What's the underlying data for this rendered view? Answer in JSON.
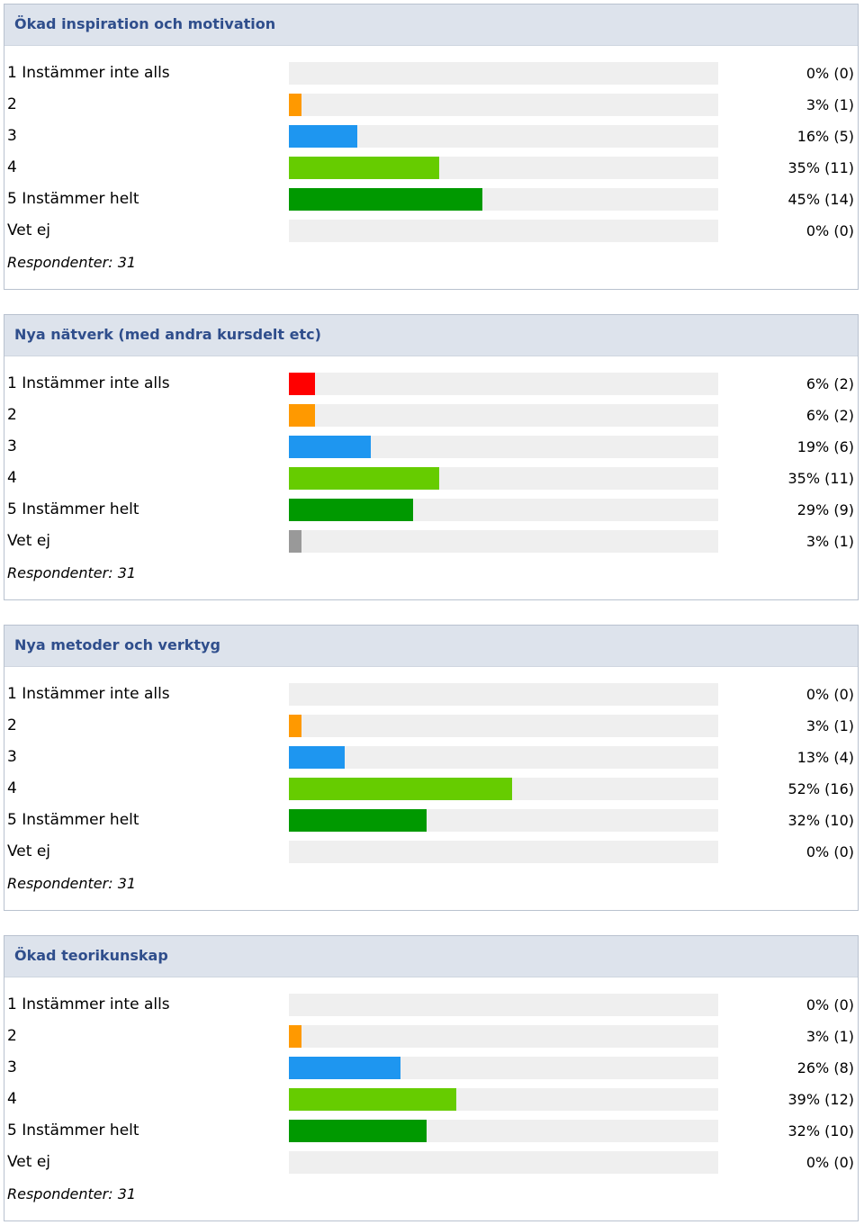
{
  "colors": {
    "1": "#ff0000",
    "2": "#ff9900",
    "3": "#1e96f0",
    "4": "#66cc00",
    "5": "#009900",
    "vet": "#999999",
    "track": "#efefef",
    "header_bg": "#dde3ec",
    "header_text": "#2f4e8c"
  },
  "chart_data": [
    {
      "type": "bar",
      "title": "Ökad inspiration och motivation",
      "categories": [
        "1 Instämmer inte alls",
        "2",
        "3",
        "4",
        "5 Instämmer helt",
        "Vet ej"
      ],
      "values": [
        0,
        3,
        16,
        35,
        45,
        0
      ],
      "counts": [
        0,
        1,
        5,
        11,
        14,
        0
      ],
      "value_labels": [
        "0% (0)",
        "3% (1)",
        "16% (5)",
        "35% (11)",
        "45% (14)",
        "0% (0)"
      ],
      "respondents": "Respondenter: 31",
      "xlim": [
        0,
        100
      ]
    },
    {
      "type": "bar",
      "title": "Nya nätverk (med andra kursdelt etc)",
      "categories": [
        "1 Instämmer inte alls",
        "2",
        "3",
        "4",
        "5 Instämmer helt",
        "Vet ej"
      ],
      "values": [
        6,
        6,
        19,
        35,
        29,
        3
      ],
      "counts": [
        2,
        2,
        6,
        11,
        9,
        1
      ],
      "value_labels": [
        "6% (2)",
        "6% (2)",
        "19% (6)",
        "35% (11)",
        "29% (9)",
        "3% (1)"
      ],
      "respondents": "Respondenter: 31",
      "xlim": [
        0,
        100
      ]
    },
    {
      "type": "bar",
      "title": "Nya metoder och verktyg",
      "categories": [
        "1 Instämmer inte alls",
        "2",
        "3",
        "4",
        "5 Instämmer helt",
        "Vet ej"
      ],
      "values": [
        0,
        3,
        13,
        52,
        32,
        0
      ],
      "counts": [
        0,
        1,
        4,
        16,
        10,
        0
      ],
      "value_labels": [
        "0% (0)",
        "3% (1)",
        "13% (4)",
        "52% (16)",
        "32% (10)",
        "0% (0)"
      ],
      "respondents": "Respondenter: 31",
      "xlim": [
        0,
        100
      ]
    },
    {
      "type": "bar",
      "title": "Ökad teorikunskap",
      "categories": [
        "1 Instämmer inte alls",
        "2",
        "3",
        "4",
        "5 Instämmer helt",
        "Vet ej"
      ],
      "values": [
        0,
        3,
        26,
        39,
        32,
        0
      ],
      "counts": [
        0,
        1,
        8,
        12,
        10,
        0
      ],
      "value_labels": [
        "0% (0)",
        "3% (1)",
        "26% (8)",
        "39% (12)",
        "32% (10)",
        "0% (0)"
      ],
      "respondents": "Respondenter: 31",
      "xlim": [
        0,
        100
      ]
    }
  ]
}
